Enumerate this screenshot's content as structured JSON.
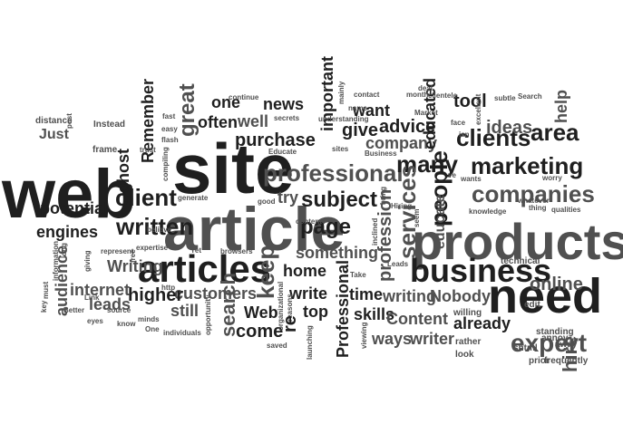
{
  "colors": {
    "background": "#ffffff",
    "dark": "#1f1f1f",
    "mid": "#505050",
    "light": "#8a8a8a"
  },
  "words": [
    "web",
    "site",
    "article",
    "products",
    "need",
    "business",
    "articles",
    "professional",
    "marketing",
    "companies",
    "page",
    "subject",
    "written",
    "clients",
    "many",
    "expert",
    "client",
    "people",
    "area",
    "services",
    "educate",
    "keep",
    "company",
    "advice",
    "want",
    "ideas",
    "help",
    "tool",
    "educated",
    "give",
    "great",
    "purchase",
    "well",
    "often",
    "one",
    "news",
    "important",
    "try",
    "something",
    "home",
    "write",
    "top",
    "skills",
    "Content",
    "writing",
    "Nobody",
    "time",
    "already",
    "writer",
    "ways",
    "hire",
    "online",
    "Professional",
    "search",
    "come",
    "Web",
    "customers",
    "still",
    "higher",
    "leads",
    "internet",
    "audience",
    "Writing",
    "potential",
    "engines",
    "ghost",
    "Remember",
    "Just",
    "frame",
    "distance",
    "post",
    "Instead",
    "fast",
    "easy",
    "flash",
    "trust",
    "free",
    "compiling",
    "continue",
    "secrets",
    "Educate",
    "understanding",
    "mainly",
    "name",
    "contact",
    "Business",
    "sites",
    "month",
    "deal",
    "clientele",
    "Market",
    "isn",
    "face",
    "excellent",
    "subtle",
    "Search",
    "wants",
    "knowledge",
    "whatever",
    "worry",
    "thing",
    "qualities",
    "Hiring",
    "bring",
    "seem",
    "inclined",
    "content",
    "Leads",
    "Take",
    "viewing",
    "launching",
    "reasons",
    "organizational",
    "saved",
    "http",
    "browsers",
    "good",
    "generate",
    "expertise",
    "represent",
    "believe",
    "Yet",
    "opportunity",
    "individuals",
    "minds",
    "know",
    "source",
    "eyes",
    "Better",
    "Link",
    "must",
    "key",
    "information",
    "long",
    "giving",
    "One",
    "re",
    "profession",
    "rather",
    "look",
    "willing",
    "annoy",
    "away",
    "standing",
    "technical",
    "edit",
    "prior",
    "frequently",
    "shtml",
    "ve"
  ]
}
